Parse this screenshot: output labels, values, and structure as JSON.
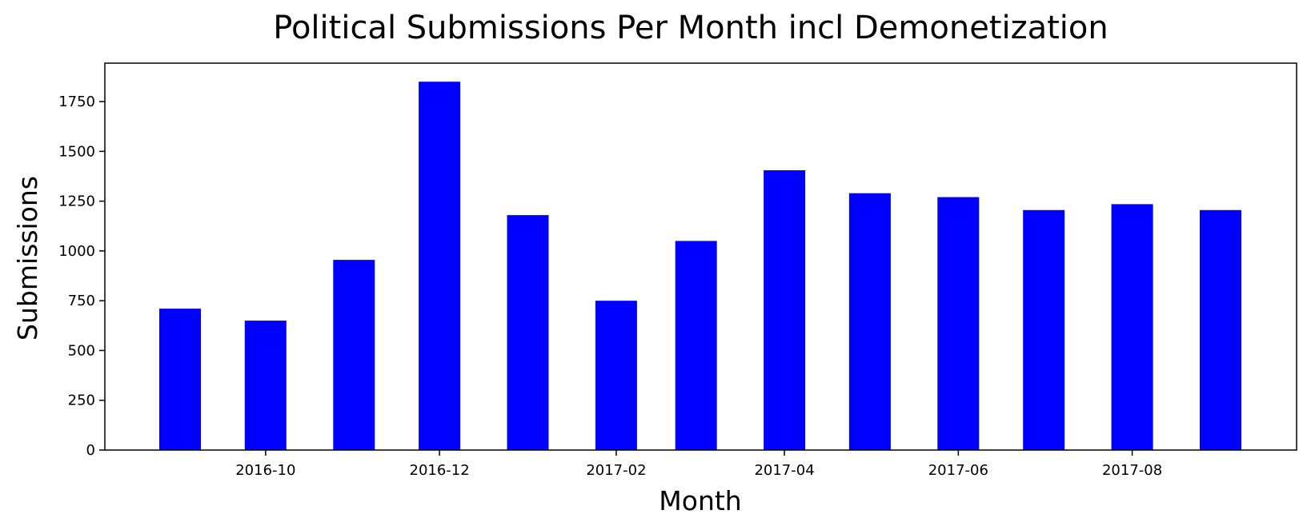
{
  "chart_data": {
    "type": "bar",
    "title": "Political Submissions Per Month incl Demonetization",
    "xlabel": "Month",
    "ylabel": "Submissions",
    "x": [
      "2016-09",
      "2016-10",
      "2016-11",
      "2016-12",
      "2017-01",
      "2017-02",
      "2017-03",
      "2017-04",
      "2017-05",
      "2017-06",
      "2017-07",
      "2017-08",
      "2017-09"
    ],
    "values": [
      710,
      650,
      955,
      1850,
      1180,
      750,
      1050,
      1405,
      1290,
      1270,
      1205,
      1235,
      1205
    ],
    "x_tick_labels": [
      "2016-10",
      "2016-12",
      "2017-02",
      "2017-04",
      "2017-06",
      "2017-08"
    ],
    "y_ticks": [
      0,
      250,
      500,
      750,
      1000,
      1250,
      1500,
      1750
    ],
    "ylim": [
      0,
      1943
    ],
    "bar_color": "#0000ff",
    "grid": false,
    "legend": "none"
  }
}
